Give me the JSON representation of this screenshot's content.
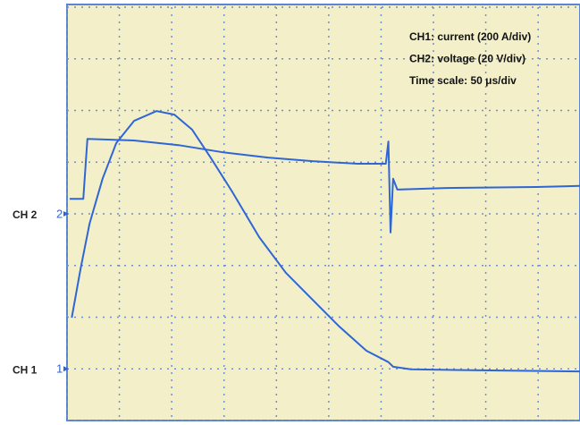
{
  "chart_data": {
    "type": "line",
    "annotations": [
      "CH1: current (200 A/div)",
      "CH2: voltage (20 V/div)",
      "Time scale: 50 μs/div"
    ],
    "channels": [
      {
        "name": "CH 2",
        "marker": "2",
        "value": 4
      },
      {
        "name": "CH 1",
        "marker": "1",
        "value": 1
      }
    ],
    "xlim": [
      0,
      9.8
    ],
    "ylim": [
      0,
      8
    ],
    "xticks": [
      0,
      1,
      2,
      3,
      4,
      5,
      6,
      7,
      8,
      9
    ],
    "yticks": [
      0,
      1,
      2,
      3,
      4,
      5,
      6,
      7,
      8
    ],
    "grid": true,
    "series": [
      {
        "color": "#2f66d6",
        "x": [
          0.05,
          0.31,
          0.39,
          1.28,
          2.13,
          2.99,
          3.84,
          4.69,
          5.55,
          6.09,
          6.14,
          6.18,
          6.23,
          6.31,
          7.25,
          8.96,
          9.8
        ],
        "values": [
          4.29,
          4.29,
          5.45,
          5.42,
          5.33,
          5.19,
          5.09,
          5.02,
          4.97,
          4.97,
          5.4,
          3.64,
          4.68,
          4.47,
          4.5,
          4.52,
          4.54
        ]
      },
      {
        "color": "#2f66d6",
        "x": [
          0.09,
          0.26,
          0.43,
          0.68,
          0.94,
          1.28,
          1.71,
          2.05,
          2.39,
          2.73,
          3.16,
          3.67,
          4.18,
          4.69,
          5.2,
          5.72,
          6.14,
          6.23,
          6.57,
          8.11,
          9.8
        ],
        "values": [
          1.99,
          2.94,
          3.81,
          4.68,
          5.37,
          5.8,
          5.99,
          5.92,
          5.63,
          5.11,
          4.42,
          3.55,
          2.86,
          2.34,
          1.82,
          1.35,
          1.13,
          1.04,
          0.99,
          0.97,
          0.95
        ]
      }
    ]
  }
}
